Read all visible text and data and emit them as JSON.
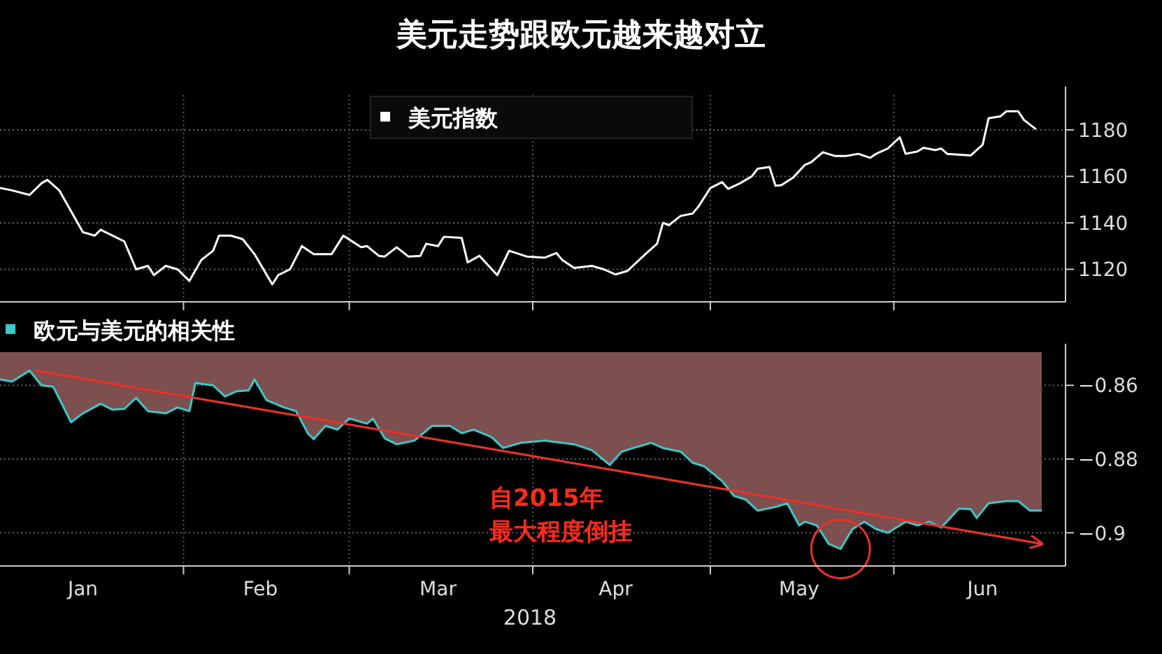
{
  "chart_data": [
    {
      "type": "line",
      "title": "美元走势跟欧元越来越对立",
      "xlim": [
        "2018-01-01",
        "2018-06-30"
      ],
      "xticks": [
        {
          "value": "2018-02-01",
          "label": null
        },
        {
          "value": "2018-03-01",
          "label": null
        },
        {
          "value": "2018-04-01",
          "label": null
        },
        {
          "value": "2018-05-01",
          "label": null
        },
        {
          "value": "2018-06-01",
          "label": null
        }
      ],
      "ylim": [
        1106,
        1195
      ],
      "yticks": [
        1120,
        1140,
        1160,
        1180
      ],
      "grid": true,
      "legend": "top",
      "tick_labels": "y",
      "x": [
        "2018-01-01",
        "2018-01-03",
        "2018-01-06",
        "2018-01-08",
        "2018-01-09",
        "2018-01-11",
        "2018-01-15",
        "2018-01-17",
        "2018-01-18",
        "2018-01-20",
        "2018-01-22",
        "2018-01-24",
        "2018-01-26",
        "2018-01-27",
        "2018-01-29",
        "2018-01-31",
        "2018-02-02",
        "2018-02-04",
        "2018-02-06",
        "2018-02-07",
        "2018-02-09",
        "2018-02-11",
        "2018-02-13",
        "2018-02-16",
        "2018-02-17",
        "2018-02-19",
        "2018-02-21",
        "2018-02-23",
        "2018-02-26",
        "2018-02-28",
        "2018-03-03",
        "2018-03-04",
        "2018-03-06",
        "2018-03-07",
        "2018-03-09",
        "2018-03-11",
        "2018-03-13",
        "2018-03-14",
        "2018-03-16",
        "2018-03-17",
        "2018-03-20",
        "2018-03-21",
        "2018-03-23",
        "2018-03-26",
        "2018-03-28",
        "2018-03-31",
        "2018-04-03",
        "2018-04-05",
        "2018-04-06",
        "2018-04-08",
        "2018-04-11",
        "2018-04-13",
        "2018-04-15",
        "2018-04-17",
        "2018-04-20",
        "2018-04-22",
        "2018-04-23",
        "2018-04-24",
        "2018-04-26",
        "2018-04-28",
        "2018-04-29",
        "2018-05-01",
        "2018-05-03",
        "2018-05-04",
        "2018-05-06",
        "2018-05-08",
        "2018-05-09",
        "2018-05-11",
        "2018-05-12",
        "2018-05-13",
        "2018-05-15",
        "2018-05-17",
        "2018-05-18",
        "2018-05-20",
        "2018-05-22",
        "2018-05-24",
        "2018-05-26",
        "2018-05-28",
        "2018-05-29",
        "2018-05-31",
        "2018-06-02",
        "2018-06-03",
        "2018-06-05",
        "2018-06-06",
        "2018-06-08",
        "2018-06-09",
        "2018-06-10",
        "2018-06-14",
        "2018-06-16",
        "2018-06-17",
        "2018-06-19",
        "2018-06-20",
        "2018-06-22",
        "2018-06-23",
        "2018-06-25"
      ],
      "series": [
        {
          "name": "美元指数",
          "color": "#ffffff",
          "values": [
            1155,
            1154,
            1152,
            1157,
            1158.5,
            1154,
            1136,
            1134.5,
            1137,
            1134.5,
            1132,
            1120,
            1121.5,
            1117.5,
            1121.5,
            1120,
            1115,
            1124,
            1128,
            1134.5,
            1134.5,
            1133,
            1126.5,
            1113.5,
            1117.5,
            1120,
            1130,
            1126.5,
            1126.5,
            1134.5,
            1129.5,
            1130,
            1125.8,
            1125.5,
            1129.5,
            1125.5,
            1125.8,
            1131,
            1130,
            1134,
            1133.5,
            1123,
            1125.8,
            1117.5,
            1128,
            1125.5,
            1125,
            1127,
            1124,
            1120.6,
            1121.5,
            1120,
            1117.8,
            1119.3,
            1126.5,
            1131,
            1140,
            1139,
            1143,
            1144,
            1147,
            1155,
            1157.5,
            1154.6,
            1157,
            1160,
            1163.3,
            1164,
            1156,
            1156.2,
            1159.5,
            1165,
            1166,
            1170.4,
            1168.8,
            1168.8,
            1169.7,
            1168,
            1169.7,
            1172,
            1176.8,
            1169.7,
            1170.7,
            1172.3,
            1171.3,
            1172,
            1169.7,
            1169,
            1173.6,
            1185,
            1185.8,
            1188,
            1188,
            1184.2,
            1180.3
          ]
        }
      ]
    },
    {
      "type": "area",
      "xlabel": "2018",
      "xlim": [
        "2018-01-01",
        "2018-06-30"
      ],
      "xticks": [
        {
          "value": "2018-01-15",
          "label": "Jan"
        },
        {
          "value": "2018-02-01",
          "label": null
        },
        {
          "value": "2018-02-14",
          "label": "Feb"
        },
        {
          "value": "2018-03-01",
          "label": null
        },
        {
          "value": "2018-03-16",
          "label": "Mar"
        },
        {
          "value": "2018-04-01",
          "label": null
        },
        {
          "value": "2018-04-15",
          "label": "Apr"
        },
        {
          "value": "2018-05-01",
          "label": null
        },
        {
          "value": "2018-05-16",
          "label": "May"
        },
        {
          "value": "2018-06-01",
          "label": null
        },
        {
          "value": "2018-06-16",
          "label": "Jun"
        }
      ],
      "ylim": [
        -0.909,
        -0.851
      ],
      "yticks": [
        -0.86,
        -0.88,
        -0.9
      ],
      "grid": true,
      "legend": "top left",
      "x": [
        "2018-01-01",
        "2018-01-03",
        "2018-01-06",
        "2018-01-08",
        "2018-01-10",
        "2018-01-13",
        "2018-01-15",
        "2018-01-18",
        "2018-01-20",
        "2018-01-22",
        "2018-01-24",
        "2018-01-26",
        "2018-01-29",
        "2018-01-31",
        "2018-02-02",
        "2018-02-03",
        "2018-02-06",
        "2018-02-08",
        "2018-02-10",
        "2018-02-12",
        "2018-02-13",
        "2018-02-15",
        "2018-02-18",
        "2018-02-20",
        "2018-02-22",
        "2018-02-23",
        "2018-02-25",
        "2018-02-27",
        "2018-03-01",
        "2018-03-04",
        "2018-03-05",
        "2018-03-07",
        "2018-03-09",
        "2018-03-12",
        "2018-03-15",
        "2018-03-18",
        "2018-03-20",
        "2018-03-22",
        "2018-03-25",
        "2018-03-27",
        "2018-03-30",
        "2018-04-03",
        "2018-04-05",
        "2018-04-08",
        "2018-04-11",
        "2018-04-14",
        "2018-04-16",
        "2018-04-18",
        "2018-04-21",
        "2018-04-23",
        "2018-04-26",
        "2018-04-28",
        "2018-04-30",
        "2018-05-03",
        "2018-05-05",
        "2018-05-07",
        "2018-05-09",
        "2018-05-12",
        "2018-05-14",
        "2018-05-16",
        "2018-05-17",
        "2018-05-19",
        "2018-05-21",
        "2018-05-23",
        "2018-05-25",
        "2018-05-27",
        "2018-05-29",
        "2018-05-31",
        "2018-06-03",
        "2018-06-05",
        "2018-06-07",
        "2018-06-09",
        "2018-06-12",
        "2018-06-14",
        "2018-06-15",
        "2018-06-17",
        "2018-06-20",
        "2018-06-22",
        "2018-06-24",
        "2018-06-26"
      ],
      "series": [
        {
          "color": "#7d4f4f",
          "values": [
            -0.8584,
            -0.859,
            -0.856,
            -0.86,
            -0.8604,
            -0.87,
            -0.8676,
            -0.865,
            -0.8666,
            -0.8664,
            -0.8634,
            -0.867,
            -0.8676,
            -0.866,
            -0.867,
            -0.8594,
            -0.86,
            -0.863,
            -0.8616,
            -0.8614,
            -0.8584,
            -0.864,
            -0.866,
            -0.867,
            -0.873,
            -0.8746,
            -0.871,
            -0.872,
            -0.869,
            -0.8704,
            -0.869,
            -0.8744,
            -0.876,
            -0.875,
            -0.871,
            -0.871,
            -0.873,
            -0.872,
            -0.874,
            -0.877,
            -0.8756,
            -0.875,
            -0.8754,
            -0.876,
            -0.8776,
            -0.8816,
            -0.878,
            -0.877,
            -0.8756,
            -0.877,
            -0.878,
            -0.881,
            -0.882,
            -0.886,
            -0.89,
            -0.891,
            -0.894,
            -0.893,
            -0.892,
            -0.898,
            -0.897,
            -0.898,
            -0.903,
            -0.9044,
            -0.899,
            -0.897,
            -0.899,
            -0.9,
            -0.897,
            -0.898,
            -0.897,
            -0.8986,
            -0.8934,
            -0.8936,
            -0.896,
            -0.892,
            -0.8914,
            -0.8914,
            -0.894,
            -0.894
          ]
        },
        {
          "type": "line",
          "name": "欧元与美元的相关性",
          "color": "#3cc8c8",
          "values": [
            -0.8584,
            -0.859,
            -0.856,
            -0.86,
            -0.8604,
            -0.87,
            -0.8676,
            -0.865,
            -0.8666,
            -0.8664,
            -0.8634,
            -0.867,
            -0.8676,
            -0.866,
            -0.867,
            -0.8594,
            -0.86,
            -0.863,
            -0.8616,
            -0.8614,
            -0.8584,
            -0.864,
            -0.866,
            -0.867,
            -0.873,
            -0.8746,
            -0.871,
            -0.872,
            -0.869,
            -0.8704,
            -0.869,
            -0.8744,
            -0.876,
            -0.875,
            -0.871,
            -0.871,
            -0.873,
            -0.872,
            -0.874,
            -0.877,
            -0.8756,
            -0.875,
            -0.8754,
            -0.876,
            -0.8776,
            -0.8816,
            -0.878,
            -0.877,
            -0.8756,
            -0.877,
            -0.878,
            -0.881,
            -0.882,
            -0.886,
            -0.89,
            -0.891,
            -0.894,
            -0.893,
            -0.892,
            -0.898,
            -0.897,
            -0.898,
            -0.903,
            -0.9044,
            -0.899,
            -0.897,
            -0.899,
            -0.9,
            -0.897,
            -0.898,
            -0.897,
            -0.8986,
            -0.8934,
            -0.8936,
            -0.896,
            -0.892,
            -0.8914,
            -0.8914,
            -0.894,
            -0.894
          ]
        },
        {
          "type": "line",
          "color": "#e8322a",
          "x": [
            "2018-01-07",
            "2018-06-26"
          ],
          "values": [
            -0.856,
            -0.903
          ]
        },
        {
          "type": "scatter",
          "color": "#e8322a",
          "x": [
            "2018-05-23"
          ],
          "values": [
            -0.9044
          ]
        }
      ],
      "annotations": [
        "自2015年",
        "最大程度倒挂"
      ]
    }
  ]
}
